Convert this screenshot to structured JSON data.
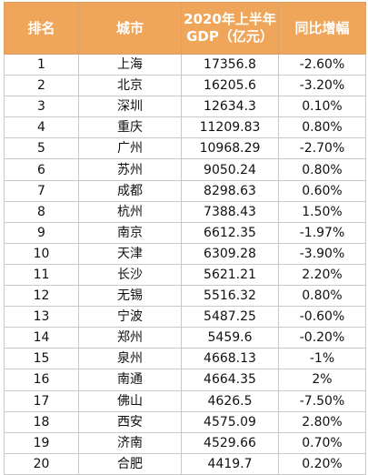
{
  "table": {
    "headers": [
      "排名",
      "城市",
      "2020年上半年GDP（亿元）",
      "同比增幅"
    ],
    "rows": [
      [
        "1",
        "上海",
        "17356.8",
        "-2.60%"
      ],
      [
        "2",
        "北京",
        "16205.6",
        "-3.20%"
      ],
      [
        "3",
        "深圳",
        "12634.3",
        "0.10%"
      ],
      [
        "4",
        "重庆",
        "11209.83",
        "0.80%"
      ],
      [
        "5",
        "广州",
        "10968.29",
        "-2.70%"
      ],
      [
        "6",
        "苏州",
        "9050.24",
        "0.80%"
      ],
      [
        "7",
        "成都",
        "8298.63",
        "0.60%"
      ],
      [
        "8",
        "杭州",
        "7388.43",
        "1.50%"
      ],
      [
        "9",
        "南京",
        "6612.35",
        "-1.97%"
      ],
      [
        "10",
        "天津",
        "6309.28",
        "-3.90%"
      ],
      [
        "11",
        "长沙",
        "5621.21",
        "2.20%"
      ],
      [
        "12",
        "无锡",
        "5516.32",
        "0.80%"
      ],
      [
        "13",
        "宁波",
        "5487.25",
        "-0.60%"
      ],
      [
        "14",
        "郑州",
        "5459.6",
        "-0.20%"
      ],
      [
        "15",
        "泉州",
        "4668.13",
        "-1%"
      ],
      [
        "16",
        "南通",
        "4664.35",
        "2%"
      ],
      [
        "17",
        "佛山",
        "4626.5",
        "-7.50%"
      ],
      [
        "18",
        "西安",
        "4575.09",
        "2.80%"
      ],
      [
        "19",
        "济南",
        "4529.66",
        "0.70%"
      ],
      [
        "20",
        "合肥",
        "4419.7",
        "0.20%"
      ]
    ]
  },
  "colors": {
    "header_bg": "#f0a65a",
    "header_text": "#ffffff",
    "border": "#c9c9c9"
  }
}
